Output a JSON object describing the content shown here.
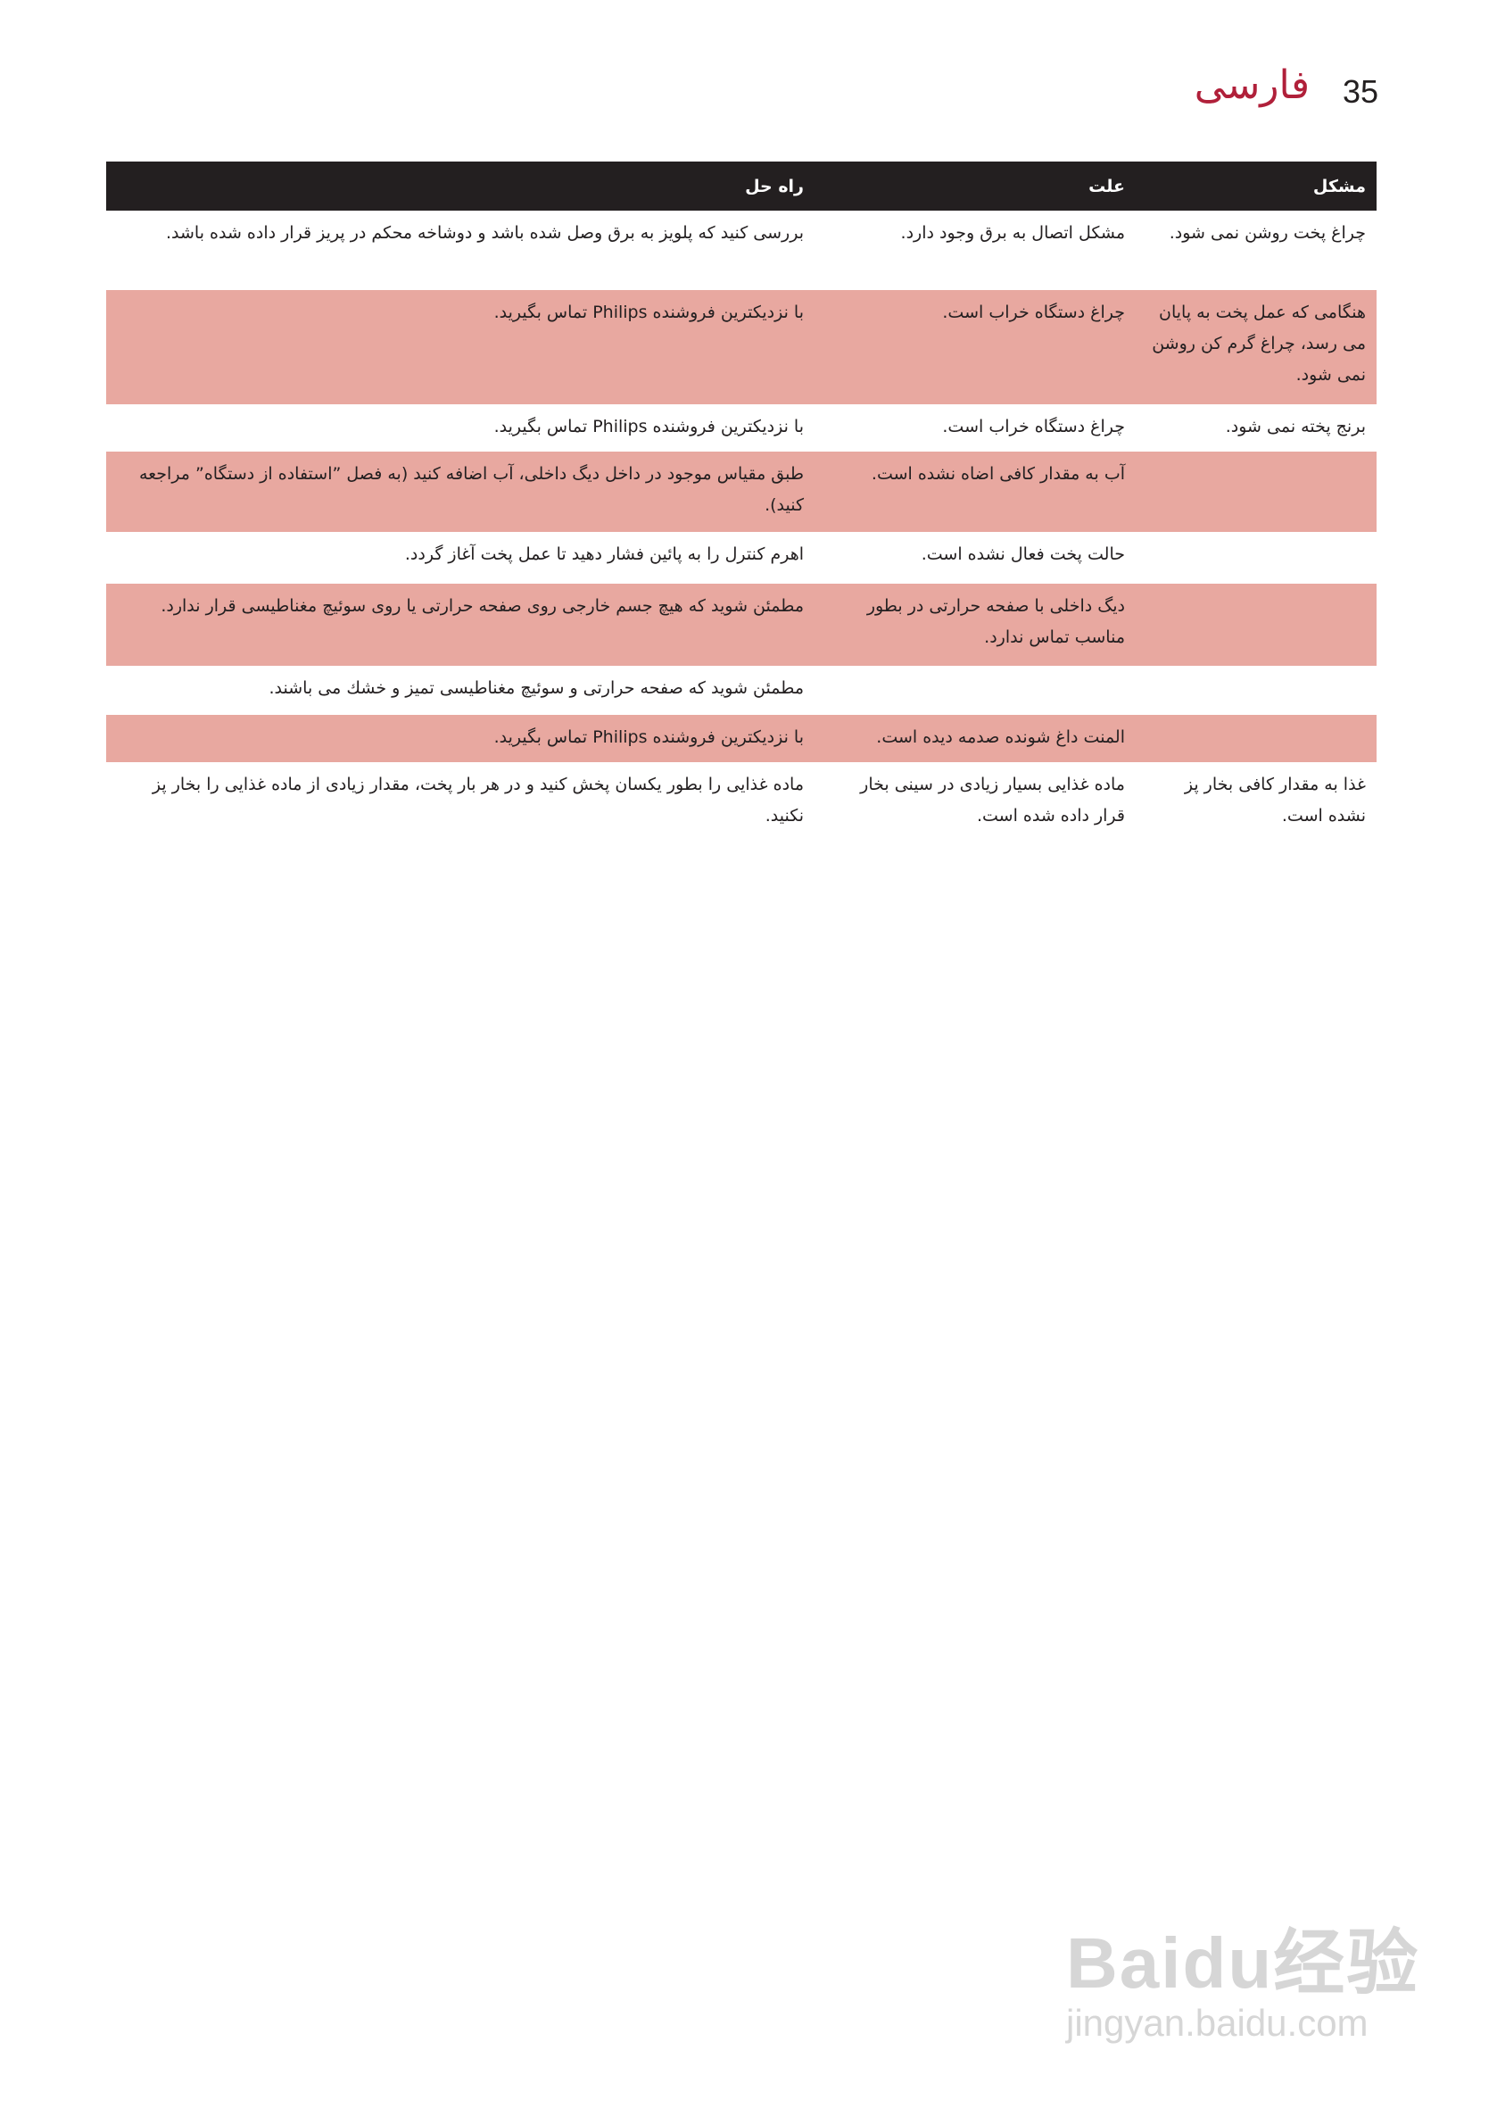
{
  "header": {
    "page_number": "35",
    "language_title": "فارسی"
  },
  "table": {
    "columns": [
      "مشکل",
      "علت",
      "راه حل"
    ],
    "rows": [
      {
        "problem": "چراغ پخت روشن نمی شود.",
        "cause": "مشکل اتصال به برق وجود دارد.",
        "solution": "بررسی کنید که  پلویز به برق وصل شده باشد و دوشاخه محکم در پریز قرار داده شده باشد.",
        "highlight": false
      },
      {
        "problem": "هنگامی که عمل پخت به پایان می رسد، چراغ گرم کن روشن نمی شود.",
        "cause": "چراغ دستگاه خراب است.",
        "solution": "با نزدیکترین فروشنده Philips تماس بگیرید.",
        "highlight": true
      },
      {
        "problem": "برنج پخته نمی شود.",
        "cause": "چراغ دستگاه خراب است.",
        "solution": "با نزدیکترین فروشنده Philips تماس بگیرید.",
        "highlight": false
      },
      {
        "problem": "",
        "cause": "آب به مقدار کافی اضاه نشده است.",
        "solution": "طبق مقیاس موجود در داخل دیگ داخلی، آب اضافه کنید (به فصل ”استفاده از دستگاه” مراجعه کنید).",
        "highlight": true
      },
      {
        "problem": "",
        "cause": "حالت پخت فعال نشده است.",
        "solution": "اهرم کنترل را به پائین فشار دهید تا عمل پخت آغاز گردد.",
        "highlight": false
      },
      {
        "problem": "",
        "cause": "دیگ داخلی با صفحه حرارتی در بطور مناسب تماس ندارد.",
        "solution": "مطمئن شوید که هیچ جسم خارجی روی صفحه حرارتی یا روی سوئیچ مغناطیسی قرار ندارد.",
        "highlight": true
      },
      {
        "problem": "",
        "cause": "",
        "solution": "مطمئن شوید که صفحه حرارتی و سوئیچ مغناطیسی تمیز و خشك می باشند.",
        "highlight": false
      },
      {
        "problem": "",
        "cause": "المنت داغ شونده صدمه دیده است.",
        "solution": "با نزدیکترین فروشنده Philips تماس بگیرید.",
        "highlight": true
      },
      {
        "problem": "غذا به مقدار کافی بخار پز نشده است.",
        "cause": "ماده غذایی بسیار زیادی در سینی بخار قرار داده شده است.",
        "solution": "ماده غذایی را بطور یکسان پخش کنید و در هر بار پخت، مقدار زیادی از ماده غذایی را بخار پز نکنید.",
        "highlight": false
      }
    ]
  },
  "colors": {
    "header_bg": "#231f20",
    "row_highlight": "#e8a8a0",
    "title": "#b0203a"
  },
  "watermark": {
    "line1": "Baidu经验",
    "line2": "jingyan.baidu.com"
  }
}
